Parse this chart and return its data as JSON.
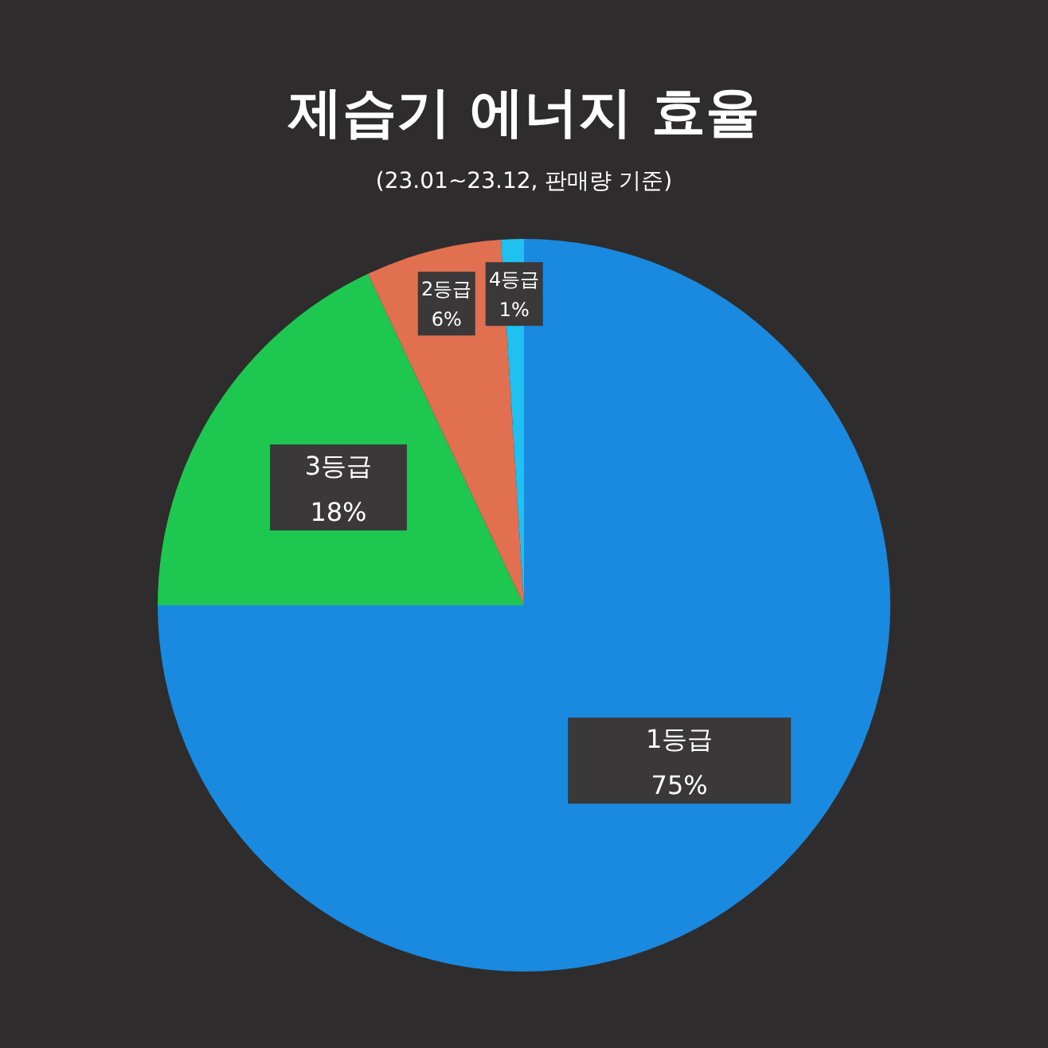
{
  "chart_data": {
    "type": "pie",
    "title": "제습기 에너지 효율",
    "subtitle": "(23.01~23.12, 판매량 기준)",
    "categories": [
      "1등급",
      "3등급",
      "2등급",
      "4등급"
    ],
    "values": [
      75,
      18,
      6,
      1
    ],
    "value_labels": [
      "75%",
      "18%",
      "6%",
      "1%"
    ],
    "colors": [
      "#1a8ae0",
      "#1ec850",
      "#e07050",
      "#20c0f0"
    ]
  }
}
